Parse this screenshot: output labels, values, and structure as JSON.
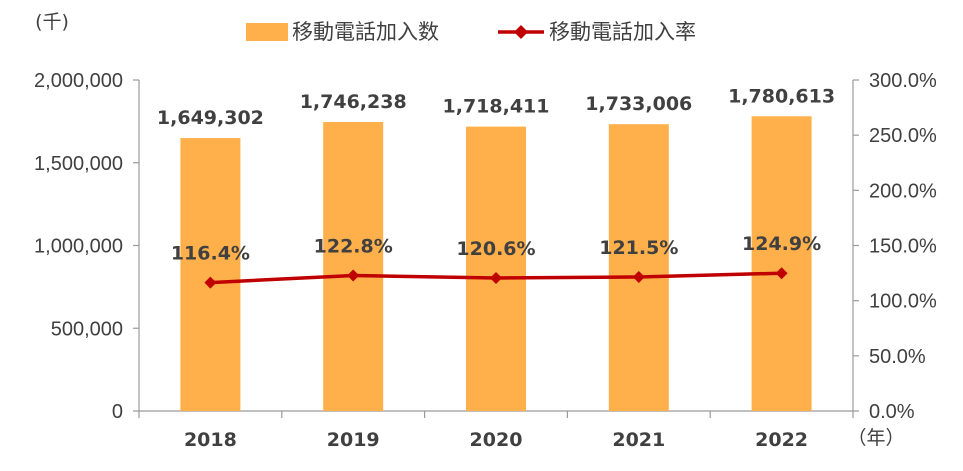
{
  "chart_data": {
    "type": "bar",
    "categories": [
      "2018",
      "2019",
      "2020",
      "2021",
      "2022"
    ],
    "series": [
      {
        "name": "移動電話加入数",
        "kind": "bar",
        "axis": "left",
        "color": "#ffb04b",
        "values": [
          1649302,
          1746238,
          1718411,
          1733006,
          1780613
        ],
        "labels": [
          "1,649,302",
          "1,746,238",
          "1,718,411",
          "1,733,006",
          "1,780,613"
        ]
      },
      {
        "name": "移動電話加入率",
        "kind": "line",
        "axis": "right",
        "color": "#c00000",
        "values": [
          116.4,
          122.8,
          120.6,
          121.5,
          124.9
        ],
        "labels": [
          "116.4%",
          "122.8%",
          "120.6%",
          "121.5%",
          "124.9%"
        ]
      }
    ],
    "y_left": {
      "unit": "(千)",
      "ylim": [
        0,
        2000000
      ],
      "ticks": [
        "0",
        "500,000",
        "1,000,000",
        "1,500,000",
        "2,000,000"
      ]
    },
    "y_right": {
      "ylim": [
        0,
        300
      ],
      "ticks": [
        "0.0%",
        "50.0%",
        "100.0%",
        "150.0%",
        "200.0%",
        "250.0%",
        "300.0%"
      ]
    },
    "x_unit": "（年）",
    "legend_position": "top",
    "grid": false
  }
}
